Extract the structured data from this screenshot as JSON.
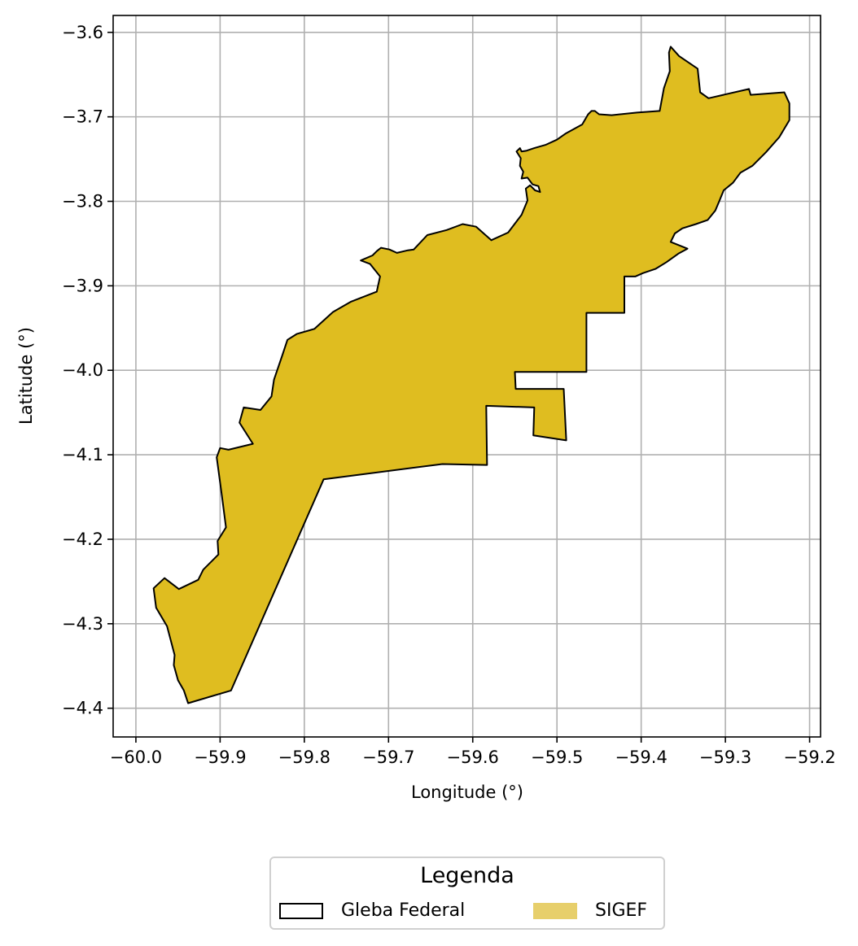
{
  "map": {
    "xlabel": "Longitude (°)",
    "ylabel": "Latitude (°)",
    "xlim": [
      -60.027,
      -59.187
    ],
    "ylim": [
      -4.434,
      -3.58
    ],
    "x_ticks": [
      -60.0,
      -59.9,
      -59.8,
      -59.7,
      -59.6,
      -59.5,
      -59.4,
      -59.3,
      -59.2
    ],
    "x_tick_labels": [
      "−60.0",
      "−59.9",
      "−59.8",
      "−59.7",
      "−59.6",
      "−59.5",
      "−59.4",
      "−59.3",
      "−59.2"
    ],
    "y_ticks": [
      -3.6,
      -3.7,
      -3.8,
      -3.9,
      -4.0,
      -4.1,
      -4.2,
      -4.3,
      -4.4
    ],
    "y_tick_labels": [
      "−3.6",
      "−3.7",
      "−3.8",
      "−3.9",
      "−4.0",
      "−4.1",
      "−4.2",
      "−4.3",
      "−4.4"
    ],
    "grid": true,
    "polygon": {
      "fill_color": "#dfbd20",
      "stroke_color": "#000000",
      "coordinates": [
        [
          -59.938,
          -4.394
        ],
        [
          -59.887,
          -4.379
        ],
        [
          -59.777,
          -4.129
        ],
        [
          -59.636,
          -4.111
        ],
        [
          -59.583,
          -4.112
        ],
        [
          -59.584,
          -4.042
        ],
        [
          -59.527,
          -4.044
        ],
        [
          -59.528,
          -4.077
        ],
        [
          -59.489,
          -4.083
        ],
        [
          -59.492,
          -4.022
        ],
        [
          -59.549,
          -4.022
        ],
        [
          -59.55,
          -4.002
        ],
        [
          -59.465,
          -4.002
        ],
        [
          -59.465,
          -3.932
        ],
        [
          -59.42,
          -3.932
        ],
        [
          -59.42,
          -3.889
        ],
        [
          -59.407,
          -3.889
        ],
        [
          -59.398,
          -3.885
        ],
        [
          -59.383,
          -3.88
        ],
        [
          -59.37,
          -3.872
        ],
        [
          -59.356,
          -3.862
        ],
        [
          -59.345,
          -3.856
        ],
        [
          -59.365,
          -3.848
        ],
        [
          -59.36,
          -3.838
        ],
        [
          -59.351,
          -3.832
        ],
        [
          -59.335,
          -3.827
        ],
        [
          -59.321,
          -3.822
        ],
        [
          -59.312,
          -3.811
        ],
        [
          -59.307,
          -3.799
        ],
        [
          -59.302,
          -3.787
        ],
        [
          -59.291,
          -3.778
        ],
        [
          -59.282,
          -3.766
        ],
        [
          -59.268,
          -3.758
        ],
        [
          -59.252,
          -3.742
        ],
        [
          -59.236,
          -3.724
        ],
        [
          -59.224,
          -3.704
        ],
        [
          -59.224,
          -3.684
        ],
        [
          -59.23,
          -3.671
        ],
        [
          -59.27,
          -3.674
        ],
        [
          -59.272,
          -3.667
        ],
        [
          -59.32,
          -3.678
        ],
        [
          -59.33,
          -3.671
        ],
        [
          -59.333,
          -3.643
        ],
        [
          -59.355,
          -3.628
        ],
        [
          -59.365,
          -3.617
        ],
        [
          -59.367,
          -3.624
        ],
        [
          -59.366,
          -3.646
        ],
        [
          -59.373,
          -3.666
        ],
        [
          -59.378,
          -3.693
        ],
        [
          -59.405,
          -3.695
        ],
        [
          -59.435,
          -3.698
        ],
        [
          -59.45,
          -3.697
        ],
        [
          -59.455,
          -3.693
        ],
        [
          -59.459,
          -3.693
        ],
        [
          -59.463,
          -3.697
        ],
        [
          -59.47,
          -3.709
        ],
        [
          -59.49,
          -3.72
        ],
        [
          -59.5,
          -3.727
        ],
        [
          -59.513,
          -3.733
        ],
        [
          -59.527,
          -3.737
        ],
        [
          -59.536,
          -3.74
        ],
        [
          -59.542,
          -3.741
        ],
        [
          -59.544,
          -3.737
        ],
        [
          -59.548,
          -3.741
        ],
        [
          -59.543,
          -3.749
        ],
        [
          -59.544,
          -3.758
        ],
        [
          -59.54,
          -3.765
        ],
        [
          -59.542,
          -3.773
        ],
        [
          -59.535,
          -3.772
        ],
        [
          -59.529,
          -3.78
        ],
        [
          -59.522,
          -3.782
        ],
        [
          -59.52,
          -3.789
        ],
        [
          -59.526,
          -3.787
        ],
        [
          -59.532,
          -3.781
        ],
        [
          -59.537,
          -3.785
        ],
        [
          -59.535,
          -3.799
        ],
        [
          -59.542,
          -3.816
        ],
        [
          -59.558,
          -3.837
        ],
        [
          -59.578,
          -3.846
        ],
        [
          -59.596,
          -3.83
        ],
        [
          -59.612,
          -3.827
        ],
        [
          -59.631,
          -3.834
        ],
        [
          -59.654,
          -3.84
        ],
        [
          -59.67,
          -3.857
        ],
        [
          -59.677,
          -3.858
        ],
        [
          -59.69,
          -3.861
        ],
        [
          -59.699,
          -3.857
        ],
        [
          -59.709,
          -3.855
        ],
        [
          -59.714,
          -3.859
        ],
        [
          -59.719,
          -3.864
        ],
        [
          -59.733,
          -3.87
        ],
        [
          -59.722,
          -3.874
        ],
        [
          -59.71,
          -3.889
        ],
        [
          -59.714,
          -3.907
        ],
        [
          -59.745,
          -3.919
        ],
        [
          -59.766,
          -3.931
        ],
        [
          -59.788,
          -3.951
        ],
        [
          -59.809,
          -3.957
        ],
        [
          -59.82,
          -3.964
        ],
        [
          -59.826,
          -3.982
        ],
        [
          -59.836,
          -4.011
        ],
        [
          -59.839,
          -4.031
        ],
        [
          -59.852,
          -4.047
        ],
        [
          -59.872,
          -4.044
        ],
        [
          -59.877,
          -4.062
        ],
        [
          -59.861,
          -4.087
        ],
        [
          -59.89,
          -4.094
        ],
        [
          -59.9,
          -4.092
        ],
        [
          -59.904,
          -4.103
        ],
        [
          -59.902,
          -4.118
        ],
        [
          -59.898,
          -4.148
        ],
        [
          -59.893,
          -4.186
        ],
        [
          -59.903,
          -4.202
        ],
        [
          -59.902,
          -4.218
        ],
        [
          -59.92,
          -4.236
        ],
        [
          -59.926,
          -4.248
        ],
        [
          -59.949,
          -4.259
        ],
        [
          -59.966,
          -4.246
        ],
        [
          -59.979,
          -4.258
        ],
        [
          -59.976,
          -4.281
        ],
        [
          -59.963,
          -4.303
        ],
        [
          -59.954,
          -4.337
        ],
        [
          -59.955,
          -4.349
        ],
        [
          -59.95,
          -4.367
        ],
        [
          -59.943,
          -4.379
        ]
      ]
    }
  },
  "legend": {
    "title": "Legenda",
    "items": [
      {
        "label": "Gleba Federal",
        "style": "outline",
        "color": "#000000"
      },
      {
        "label": "SIGEF",
        "style": "fill",
        "color": "#e7cf6b"
      }
    ]
  }
}
